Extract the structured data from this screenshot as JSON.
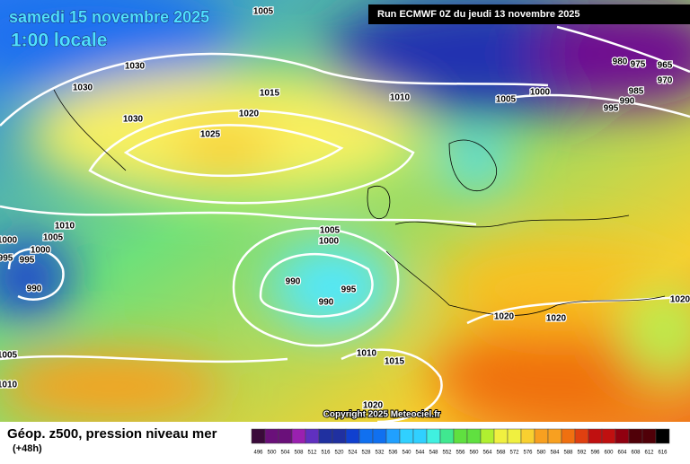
{
  "header": {
    "date": "samedi 15 novembre 2025",
    "time": "1:00 locale",
    "run": "Run ECMWF 0Z du jeudi 13 novembre 2025"
  },
  "copyright": "Copyright 2025 Meteociel.fr",
  "footer": {
    "title": "Géop. z500, pression niveau mer",
    "lead": "(+48h)"
  },
  "isobar_labels": [
    "1005",
    "1030",
    "1030",
    "1015",
    "1010",
    "1005",
    "1000",
    "980",
    "975",
    "965",
    "970",
    "985",
    "990",
    "995",
    "1030",
    "1020",
    "1025",
    "1010",
    "1005",
    "1000",
    "1000",
    "995",
    "995",
    "990",
    "1005",
    "1000",
    "990",
    "995",
    "990",
    "1020",
    "1020",
    "1020",
    "1010",
    "1015",
    "1005",
    "1010",
    "1020"
  ],
  "colorbar": [
    "496",
    "500",
    "504",
    "508",
    "512",
    "516",
    "520",
    "524",
    "528",
    "532",
    "536",
    "540",
    "544",
    "548",
    "552",
    "556",
    "560",
    "564",
    "568",
    "572",
    "576",
    "580",
    "584",
    "588",
    "592",
    "596",
    "600",
    "604",
    "608",
    "612",
    "616"
  ]
}
